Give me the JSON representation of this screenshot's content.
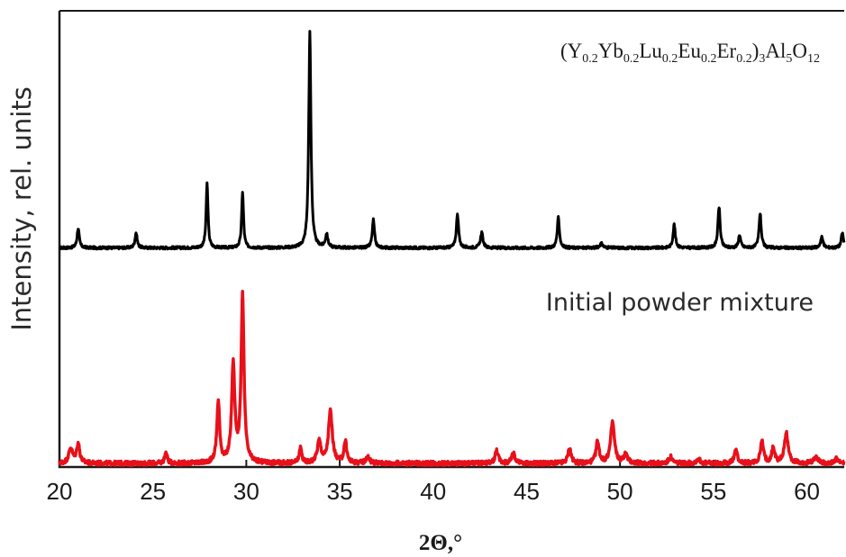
{
  "chart_data": {
    "type": "line",
    "title": "",
    "xlabel": "2Θ,°",
    "ylabel": "Intensity, rel. units",
    "xlim": [
      20,
      62
    ],
    "ylim": [
      0,
      2.1
    ],
    "x_ticks": [
      20,
      25,
      30,
      35,
      40,
      45,
      50,
      55,
      60
    ],
    "grid": false,
    "legend": "none",
    "series": [
      {
        "label_parts": [
          {
            "t": "(Y",
            "sub": false
          },
          {
            "t": "0.2",
            "sub": true
          },
          {
            "t": "Yb",
            "sub": false
          },
          {
            "t": "0.2",
            "sub": true
          },
          {
            "t": "Lu",
            "sub": false
          },
          {
            "t": "0.2",
            "sub": true
          },
          {
            "t": "Eu",
            "sub": false
          },
          {
            "t": "0.2",
            "sub": true
          },
          {
            "t": "Er",
            "sub": false
          },
          {
            "t": "0.2",
            "sub": true
          },
          {
            "t": ")",
            "sub": false
          },
          {
            "t": "3",
            "sub": true
          },
          {
            "t": "Al",
            "sub": false
          },
          {
            "t": "5",
            "sub": true
          },
          {
            "t": "O",
            "sub": false
          },
          {
            "t": "12",
            "sub": true
          }
        ],
        "color": "#000000",
        "baseline": 1.0,
        "noise": 0.006,
        "peaks": [
          [
            21.0,
            0.09,
            0.07
          ],
          [
            24.1,
            0.07,
            0.07
          ],
          [
            27.9,
            0.3,
            0.06
          ],
          [
            29.8,
            0.26,
            0.06
          ],
          [
            33.4,
            1.0,
            0.07
          ],
          [
            34.3,
            0.06,
            0.08
          ],
          [
            36.8,
            0.13,
            0.07
          ],
          [
            41.3,
            0.16,
            0.07
          ],
          [
            42.6,
            0.07,
            0.08
          ],
          [
            46.7,
            0.14,
            0.07
          ],
          [
            49.0,
            0.02,
            0.1
          ],
          [
            52.9,
            0.11,
            0.07
          ],
          [
            55.3,
            0.19,
            0.07
          ],
          [
            56.4,
            0.06,
            0.07
          ],
          [
            57.5,
            0.16,
            0.07
          ],
          [
            60.8,
            0.05,
            0.08
          ],
          [
            61.9,
            0.07,
            0.07
          ]
        ]
      },
      {
        "label": "Initial powder mixture",
        "color": "#e8101a",
        "baseline": 0.0,
        "noise": 0.01,
        "peaks": [
          [
            20.6,
            0.07,
            0.12
          ],
          [
            21.0,
            0.09,
            0.1
          ],
          [
            25.7,
            0.05,
            0.08
          ],
          [
            28.5,
            0.28,
            0.09
          ],
          [
            29.3,
            0.45,
            0.1
          ],
          [
            29.8,
            0.77,
            0.09
          ],
          [
            32.9,
            0.07,
            0.08
          ],
          [
            33.9,
            0.1,
            0.12
          ],
          [
            34.5,
            0.24,
            0.12
          ],
          [
            35.3,
            0.1,
            0.09
          ],
          [
            36.5,
            0.03,
            0.12
          ],
          [
            43.4,
            0.06,
            0.1
          ],
          [
            44.3,
            0.05,
            0.1
          ],
          [
            47.3,
            0.07,
            0.1
          ],
          [
            48.8,
            0.1,
            0.1
          ],
          [
            49.6,
            0.19,
            0.12
          ],
          [
            50.3,
            0.04,
            0.12
          ],
          [
            52.7,
            0.03,
            0.1
          ],
          [
            54.2,
            0.02,
            0.12
          ],
          [
            56.2,
            0.06,
            0.1
          ],
          [
            57.6,
            0.1,
            0.1
          ],
          [
            58.2,
            0.07,
            0.1
          ],
          [
            58.9,
            0.14,
            0.12
          ],
          [
            60.5,
            0.03,
            0.12
          ],
          [
            61.6,
            0.02,
            0.1
          ]
        ]
      }
    ]
  }
}
